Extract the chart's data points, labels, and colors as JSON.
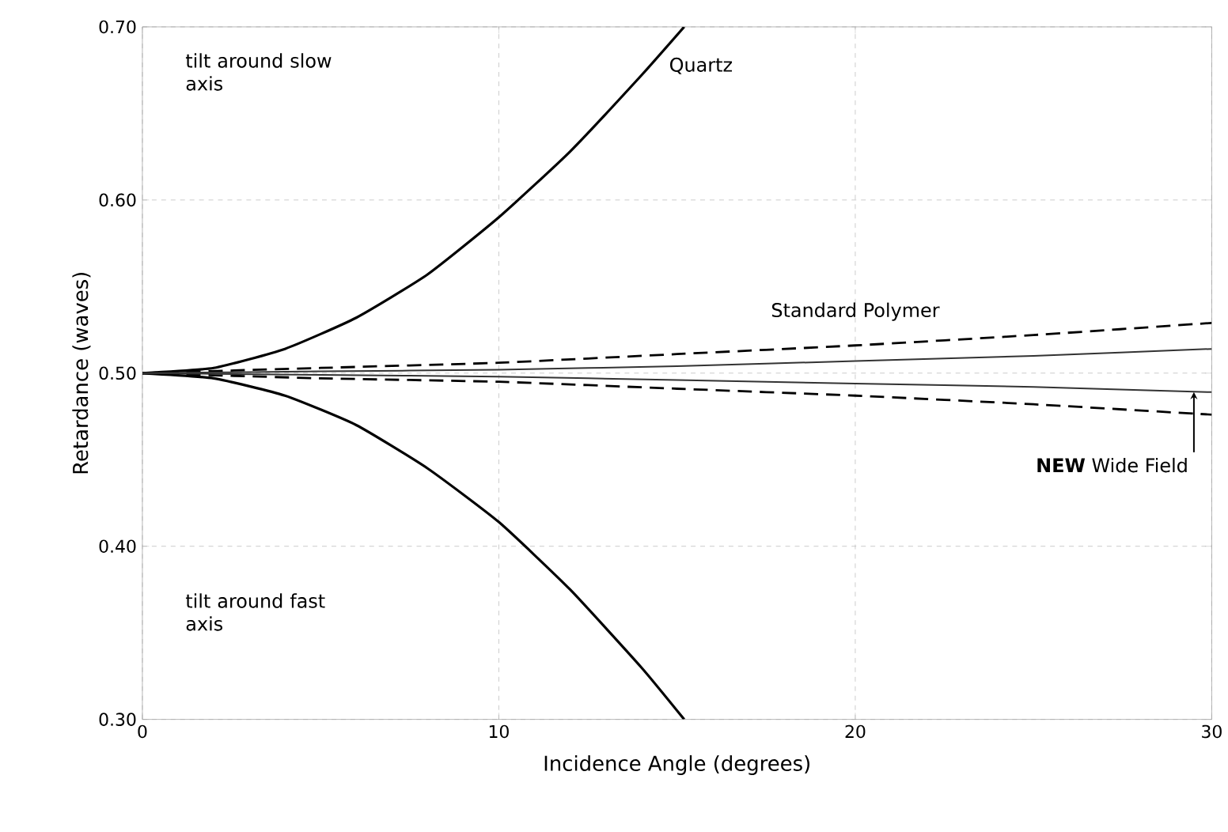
{
  "chart_data": {
    "type": "line",
    "xlabel": "Incidence Angle (degrees)",
    "ylabel": "Retardance (waves)",
    "xlim": [
      0,
      30
    ],
    "ylim": [
      0.3,
      0.7
    ],
    "xticks": [
      0,
      10,
      20,
      30
    ],
    "yticks": [
      {
        "value": 0.3,
        "label": "0.30"
      },
      {
        "value": 0.4,
        "label": "0.40"
      },
      {
        "value": 0.5,
        "label": "0.50"
      },
      {
        "value": 0.6,
        "label": "0.60"
      },
      {
        "value": 0.7,
        "label": "0.70"
      }
    ],
    "grid": true,
    "line_style": "solid",
    "series": [
      {
        "color": "#000000",
        "x": [
          0,
          2,
          4,
          6,
          8,
          10,
          12,
          14,
          15.2
        ],
        "values": [
          0.5,
          0.503,
          0.514,
          0.532,
          0.557,
          0.59,
          0.628,
          0.672,
          0.7
        ]
      },
      {
        "color": "#000000",
        "x": [
          0,
          2,
          4,
          6,
          8,
          10,
          12,
          14,
          15.2
        ],
        "values": [
          0.5,
          0.497,
          0.487,
          0.47,
          0.445,
          0.414,
          0.375,
          0.33,
          0.3
        ]
      },
      {
        "color": "#000000",
        "line_style": "dashed",
        "x": [
          0,
          5,
          10,
          15,
          20,
          25,
          30
        ],
        "values": [
          0.5,
          0.503,
          0.506,
          0.511,
          0.516,
          0.522,
          0.529
        ]
      },
      {
        "color": "#000000",
        "line_style": "dashed",
        "x": [
          0,
          5,
          10,
          15,
          20,
          25,
          30
        ],
        "values": [
          0.5,
          0.497,
          0.495,
          0.491,
          0.487,
          0.482,
          0.476
        ]
      },
      {
        "color": "#333333",
        "x": [
          0,
          5,
          10,
          15,
          20,
          25,
          30
        ],
        "values": [
          0.5,
          0.501,
          0.502,
          0.504,
          0.507,
          0.51,
          0.514
        ]
      },
      {
        "color": "#333333",
        "x": [
          0,
          5,
          10,
          15,
          20,
          25,
          30
        ],
        "values": [
          0.5,
          0.499,
          0.498,
          0.496,
          0.494,
          0.492,
          0.489
        ]
      }
    ],
    "annotations": [
      "tilt around slow axis",
      "tilt around fast axis",
      {
        "text": "Quartz",
        "x": 14,
        "y": 0.672
      },
      {
        "text": "Standard Polymer",
        "x": 20,
        "y": 0.516
      },
      {
        "text": "**NEW** Wide Field",
        "x": 29.5,
        "y": 0.489
      }
    ]
  }
}
